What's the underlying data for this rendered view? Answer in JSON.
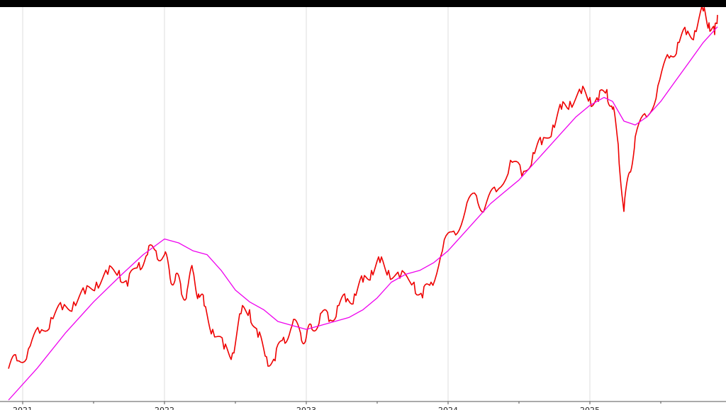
{
  "chart_data": {
    "type": "line",
    "title": "",
    "xlabel": "",
    "ylabel": "",
    "grid": true,
    "x_tick_labels": [
      "2021",
      "2022",
      "2023",
      "2024",
      "2025"
    ],
    "x_tick_years": [
      2021,
      2022,
      2023,
      2024,
      2025
    ],
    "xlim": [
      2020.9,
      2025.9
    ],
    "ylim": [
      0,
      100
    ],
    "series": [
      {
        "color": "#ee0000",
        "points": [
          [
            2020.9,
            8
          ],
          [
            2020.96,
            10
          ],
          [
            2021.04,
            13
          ],
          [
            2021.12,
            17
          ],
          [
            2021.2,
            21
          ],
          [
            2021.28,
            23
          ],
          [
            2021.36,
            25
          ],
          [
            2021.44,
            27
          ],
          [
            2021.52,
            30
          ],
          [
            2021.6,
            32
          ],
          [
            2021.68,
            33
          ],
          [
            2021.74,
            29
          ],
          [
            2021.82,
            35
          ],
          [
            2021.88,
            37
          ],
          [
            2021.94,
            38
          ],
          [
            2022.0,
            37
          ],
          [
            2022.04,
            31
          ],
          [
            2022.08,
            32
          ],
          [
            2022.12,
            27
          ],
          [
            2022.16,
            28
          ],
          [
            2022.2,
            33
          ],
          [
            2022.24,
            27
          ],
          [
            2022.28,
            24
          ],
          [
            2022.34,
            18
          ],
          [
            2022.42,
            13
          ],
          [
            2022.48,
            12
          ],
          [
            2022.54,
            22
          ],
          [
            2022.6,
            23
          ],
          [
            2022.66,
            16
          ],
          [
            2022.72,
            11
          ],
          [
            2022.78,
            10
          ],
          [
            2022.84,
            16
          ],
          [
            2022.9,
            19
          ],
          [
            2022.96,
            17
          ],
          [
            2023.0,
            16
          ],
          [
            2023.04,
            18
          ],
          [
            2023.1,
            22
          ],
          [
            2023.16,
            20
          ],
          [
            2023.22,
            24
          ],
          [
            2023.28,
            25
          ],
          [
            2023.34,
            27
          ],
          [
            2023.4,
            30
          ],
          [
            2023.46,
            33
          ],
          [
            2023.52,
            35
          ],
          [
            2023.58,
            33
          ],
          [
            2023.66,
            31
          ],
          [
            2023.76,
            30
          ],
          [
            2023.82,
            26
          ],
          [
            2023.88,
            30
          ],
          [
            2023.96,
            38
          ],
          [
            2024.04,
            43
          ],
          [
            2024.12,
            48
          ],
          [
            2024.2,
            52
          ],
          [
            2024.26,
            49
          ],
          [
            2024.34,
            53
          ],
          [
            2024.44,
            61
          ],
          [
            2024.52,
            57
          ],
          [
            2024.6,
            63
          ],
          [
            2024.66,
            65
          ],
          [
            2024.74,
            70
          ],
          [
            2024.8,
            74
          ],
          [
            2024.86,
            76
          ],
          [
            2024.94,
            78
          ],
          [
            2025.0,
            77
          ],
          [
            2025.06,
            76
          ],
          [
            2025.12,
            79
          ],
          [
            2025.16,
            74
          ],
          [
            2025.2,
            65
          ],
          [
            2025.24,
            48
          ],
          [
            2025.28,
            58
          ],
          [
            2025.32,
            67
          ],
          [
            2025.4,
            72
          ],
          [
            2025.48,
            80
          ],
          [
            2025.56,
            87
          ],
          [
            2025.62,
            91
          ],
          [
            2025.68,
            93
          ],
          [
            2025.74,
            94
          ],
          [
            2025.8,
            99
          ],
          [
            2025.84,
            96
          ],
          [
            2025.88,
            93
          ],
          [
            2025.9,
            98
          ]
        ]
      },
      {
        "color": "#ee00ee",
        "points": [
          [
            2020.9,
            0
          ],
          [
            2021.1,
            8
          ],
          [
            2021.3,
            17
          ],
          [
            2021.5,
            25
          ],
          [
            2021.7,
            32
          ],
          [
            2021.85,
            37
          ],
          [
            2022.0,
            41
          ],
          [
            2022.1,
            40
          ],
          [
            2022.2,
            38
          ],
          [
            2022.3,
            37
          ],
          [
            2022.4,
            33
          ],
          [
            2022.5,
            28
          ],
          [
            2022.6,
            25
          ],
          [
            2022.7,
            23
          ],
          [
            2022.8,
            20
          ],
          [
            2022.9,
            19
          ],
          [
            2023.0,
            18
          ],
          [
            2023.1,
            19
          ],
          [
            2023.2,
            20
          ],
          [
            2023.3,
            21
          ],
          [
            2023.4,
            23
          ],
          [
            2023.5,
            26
          ],
          [
            2023.6,
            30
          ],
          [
            2023.7,
            32
          ],
          [
            2023.8,
            33
          ],
          [
            2023.9,
            35
          ],
          [
            2024.0,
            38
          ],
          [
            2024.1,
            42
          ],
          [
            2024.2,
            46
          ],
          [
            2024.3,
            50
          ],
          [
            2024.4,
            53
          ],
          [
            2024.5,
            56
          ],
          [
            2024.6,
            60
          ],
          [
            2024.7,
            64
          ],
          [
            2024.8,
            68
          ],
          [
            2024.9,
            72
          ],
          [
            2025.0,
            75
          ],
          [
            2025.1,
            77
          ],
          [
            2025.16,
            76
          ],
          [
            2025.24,
            71
          ],
          [
            2025.32,
            70
          ],
          [
            2025.4,
            72
          ],
          [
            2025.5,
            76
          ],
          [
            2025.6,
            81
          ],
          [
            2025.7,
            86
          ],
          [
            2025.8,
            91
          ],
          [
            2025.9,
            95
          ]
        ]
      }
    ]
  }
}
